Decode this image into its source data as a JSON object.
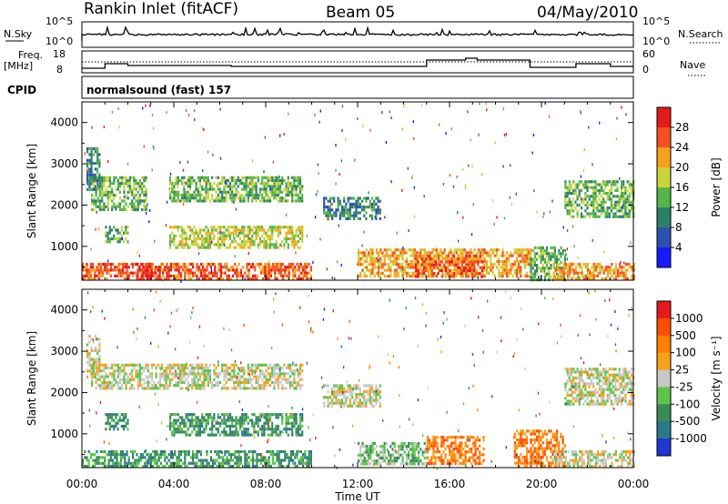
{
  "header": {
    "station": "Rankin Inlet (fitACF)",
    "beam": "Beam 05",
    "date": "04/May/2010"
  },
  "strip_panels": {
    "nsky_label": "N.Sky",
    "nsky_ticks": [
      "10^5",
      "10^0"
    ],
    "nsearch_label": "N.Search",
    "nsearch_ticks": [
      "10^5",
      "10^0"
    ],
    "freq_label": "Freq.",
    "freq_unit": "[MHz]",
    "freq_ticks": [
      "18",
      "8"
    ],
    "nave_label": "Nave",
    "nave_ticks": [
      "60",
      "0"
    ],
    "cpid_label": "CPID",
    "cpid_value": "normalsound (fast) 157"
  },
  "chart_data": [
    {
      "type": "heatmap",
      "panel": "power",
      "ylabel": "Slant Range [km]",
      "xlabel": "",
      "x_ticks": [
        "00:00",
        "04:00",
        "08:00",
        "12:00",
        "16:00",
        "20:00",
        "00:00"
      ],
      "y_ticks": [
        1000,
        2000,
        3000,
        4000
      ],
      "ylim": [
        180,
        4500
      ],
      "xlim_hours": [
        0,
        24
      ],
      "colorbar_label": "Power [dB]",
      "colorbar_ticks": [
        "28",
        "24",
        "20",
        "16",
        "12",
        "8",
        "4"
      ],
      "colorbar_colors": [
        "#1a1aff",
        "#2b50b0",
        "#2d7f6a",
        "#55b548",
        "#c9d43a",
        "#f7a21b",
        "#f4511e",
        "#e41a1c"
      ],
      "echo_regions": [
        {
          "t": [
            0.0,
            10.0
          ],
          "r": [
            180,
            600
          ],
          "level": 6
        },
        {
          "t": [
            2.3,
            3.4
          ],
          "r": [
            180,
            600
          ],
          "level": 7
        },
        {
          "t": [
            0.4,
            2.8
          ],
          "r": [
            1900,
            2700
          ],
          "level": 3
        },
        {
          "t": [
            3.8,
            9.6
          ],
          "r": [
            2100,
            2700
          ],
          "level": 3
        },
        {
          "t": [
            0.2,
            0.8
          ],
          "r": [
            2400,
            3400
          ],
          "level": 2
        },
        {
          "t": [
            1.0,
            2.0
          ],
          "r": [
            1100,
            1500
          ],
          "level": 3
        },
        {
          "t": [
            3.8,
            9.6
          ],
          "r": [
            1000,
            1500
          ],
          "level": 4
        },
        {
          "t": [
            10.5,
            13.0
          ],
          "r": [
            1700,
            2200
          ],
          "level": 2
        },
        {
          "t": [
            12.0,
            19.5
          ],
          "r": [
            250,
            950
          ],
          "level": 5
        },
        {
          "t": [
            14.5,
            17.5
          ],
          "r": [
            250,
            800
          ],
          "level": 6
        },
        {
          "t": [
            19.5,
            21.0
          ],
          "r": [
            180,
            1000
          ],
          "level": 3
        },
        {
          "t": [
            21.0,
            24.0
          ],
          "r": [
            1700,
            2600
          ],
          "level": 3
        },
        {
          "t": [
            20.5,
            24.0
          ],
          "r": [
            180,
            600
          ],
          "level": 5
        }
      ]
    },
    {
      "type": "heatmap",
      "panel": "velocity",
      "ylabel": "Slant Range [km]",
      "xlabel": "Time UT",
      "x_ticks": [
        "00:00",
        "04:00",
        "08:00",
        "12:00",
        "16:00",
        "20:00",
        "00:00"
      ],
      "y_ticks": [
        1000,
        2000,
        3000,
        4000
      ],
      "ylim": [
        180,
        4500
      ],
      "xlim_hours": [
        0,
        24
      ],
      "colorbar_label": "Velocity [m s⁻¹]",
      "colorbar_ticks": [
        "1000",
        "500",
        "100",
        "25",
        "-25",
        "-100",
        "-500",
        "-1000"
      ],
      "colorbar_colors": [
        "#2036d0",
        "#2a7a8a",
        "#3c8a58",
        "#5cc44a",
        "#c7c7c7",
        "#f5a11a",
        "#ff7f00",
        "#ff4d00",
        "#e41a1c"
      ],
      "echo_regions": [
        {
          "t": [
            0.0,
            10.0
          ],
          "r": [
            180,
            600
          ],
          "level": 2
        },
        {
          "t": [
            0.4,
            9.6
          ],
          "r": [
            2100,
            2700
          ],
          "level": 4
        },
        {
          "t": [
            0.2,
            0.8
          ],
          "r": [
            2400,
            3400
          ],
          "level": 4
        },
        {
          "t": [
            1.0,
            2.0
          ],
          "r": [
            1100,
            1500
          ],
          "level": 2
        },
        {
          "t": [
            3.8,
            9.6
          ],
          "r": [
            1000,
            1500
          ],
          "level": 2
        },
        {
          "t": [
            10.5,
            13.0
          ],
          "r": [
            1700,
            2200
          ],
          "level": 4
        },
        {
          "t": [
            12.0,
            15.0
          ],
          "r": [
            250,
            800
          ],
          "level": 3
        },
        {
          "t": [
            15.0,
            17.5
          ],
          "r": [
            250,
            950
          ],
          "level": 6
        },
        {
          "t": [
            18.8,
            21.0
          ],
          "r": [
            250,
            1100
          ],
          "level": 6
        },
        {
          "t": [
            21.0,
            24.0
          ],
          "r": [
            1700,
            2600
          ],
          "level": 4
        },
        {
          "t": [
            20.5,
            24.0
          ],
          "r": [
            180,
            600
          ],
          "level": 4
        }
      ]
    }
  ]
}
